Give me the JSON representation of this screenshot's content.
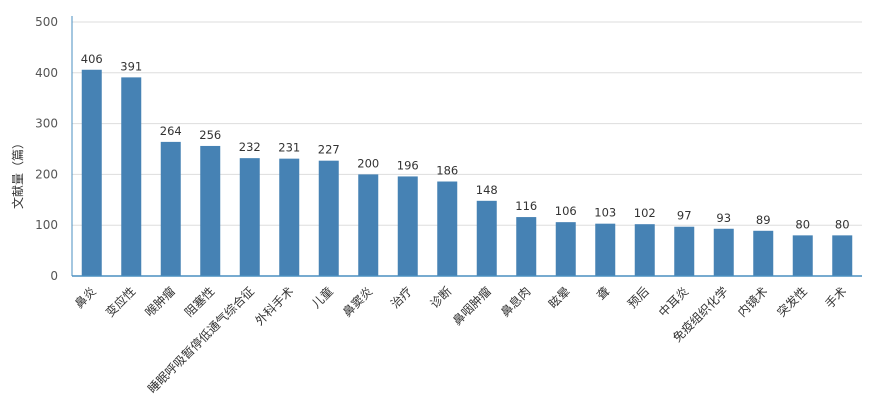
{
  "chart_data": {
    "type": "bar",
    "title": "",
    "xlabel": "",
    "ylabel": "文献量（篇）",
    "ylim": [
      0,
      500
    ],
    "yticks": [
      0,
      100,
      200,
      300,
      400,
      500
    ],
    "grid": true,
    "categories": [
      "鼻炎",
      "变应性",
      "喉肿瘤",
      "阻塞性",
      "睡眠呼吸暂停低通气综合征",
      "外科手术",
      "儿童",
      "鼻窦炎",
      "治疗",
      "诊断",
      "鼻咽肿瘤",
      "鼻息肉",
      "眩晕",
      "聋",
      "预后",
      "中耳炎",
      "免疫组织化学",
      "内镜术",
      "突发性",
      "手术"
    ],
    "values": [
      406,
      391,
      264,
      256,
      232,
      231,
      227,
      200,
      196,
      186,
      148,
      116,
      106,
      103,
      102,
      97,
      93,
      89,
      80,
      80
    ],
    "colors": {
      "bar": "#4682b4",
      "axis": "#4a8fc0",
      "grid": "#dddddd"
    }
  }
}
